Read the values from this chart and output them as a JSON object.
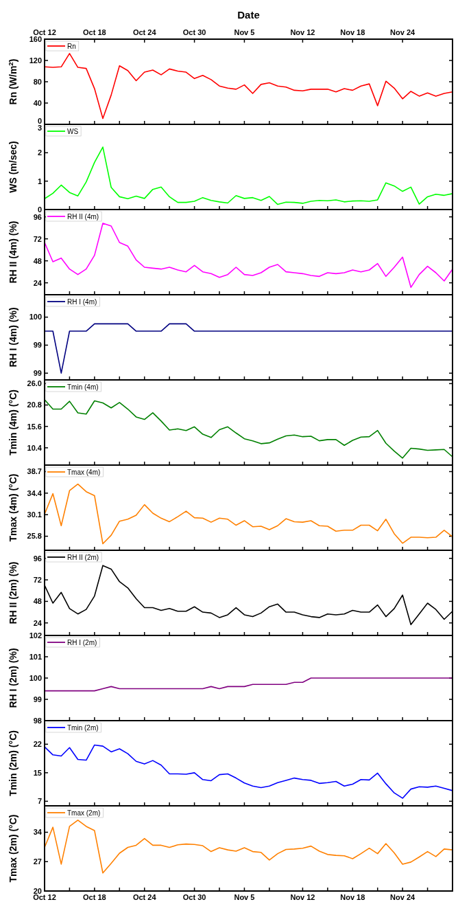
{
  "chart_data": [
    {
      "type": "line",
      "x2label": "Date",
      "x2lim": [
        "--10-12",
        "--11-30"
      ],
      "x2ticks": [
        {
          "value": "--10-12",
          "label": "Oct 12"
        },
        {
          "value": "--10-18",
          "label": "Oct 18"
        },
        {
          "value": "--10-24",
          "label": "Oct 24"
        },
        {
          "value": "--10-30",
          "label": "Oct 30"
        },
        {
          "value": "--11-05",
          "label": "Nov 5"
        },
        {
          "value": "--11-12",
          "label": "Nov 12"
        },
        {
          "value": "--11-18",
          "label": "Nov 18"
        },
        {
          "value": "--11-24",
          "label": "Nov 24"
        }
      ],
      "ylabel": "Rn (W/m$^{2}$)",
      "xlim": [
        "--10-12",
        "--11-30"
      ],
      "xticks": [
        {
          "value": "--10-12",
          "label": null
        },
        {
          "value": "--10-15",
          "label": null
        },
        {
          "value": "--10-18",
          "label": null
        },
        {
          "value": "--10-21",
          "label": null
        },
        {
          "value": "--10-24",
          "label": null
        },
        {
          "value": "--10-27",
          "label": null
        },
        {
          "value": "--10-30",
          "label": null
        },
        {
          "value": "--11-02",
          "label": null
        },
        {
          "value": "--11-05",
          "label": null
        },
        {
          "value": "--11-08",
          "label": null
        },
        {
          "value": "--11-12",
          "label": null
        },
        {
          "value": "--11-15",
          "label": null
        },
        {
          "value": "--11-18",
          "label": null
        },
        {
          "value": "--11-21",
          "label": null
        },
        {
          "value": "--11-24",
          "label": null
        },
        {
          "value": "--11-27",
          "label": null
        }
      ],
      "ylim": [
        0,
        160
      ],
      "yticks": [
        0,
        40,
        80,
        120,
        160
      ],
      "tick_labels": "y",
      "legend": "top left",
      "x": [
        "--10-12",
        "--10-13",
        "--10-14",
        "--10-15",
        "--10-16",
        "--10-17",
        "--10-18",
        "--10-19",
        "--10-20",
        "--10-21",
        "--10-22",
        "--10-23",
        "--10-24",
        "--10-25",
        "--10-26",
        "--10-27",
        "--10-28",
        "--10-29",
        "--10-30",
        "--10-31",
        "--11-01",
        "--11-02",
        "--11-03",
        "--11-04",
        "--11-05",
        "--11-06",
        "--11-07",
        "--11-08",
        "--11-09",
        "--11-10",
        "--11-11",
        "--11-12",
        "--11-13",
        "--11-14",
        "--11-15",
        "--11-16",
        "--11-17",
        "--11-18",
        "--11-19",
        "--11-20",
        "--11-21",
        "--11-22",
        "--11-23",
        "--11-24",
        "--11-25",
        "--11-26",
        "--11-27",
        "--11-28",
        "--11-29",
        "--11-30"
      ],
      "series": [
        {
          "name": "Rn",
          "color": "#ff0000",
          "values": [
            108,
            107,
            108,
            133,
            107,
            105,
            67,
            11,
            55,
            110,
            101,
            82,
            98,
            102,
            93,
            104,
            100,
            98,
            86,
            92,
            84,
            72,
            68,
            66,
            74,
            58,
            75,
            78,
            72,
            70,
            64,
            63,
            66,
            66,
            66,
            61,
            67,
            64,
            72,
            76,
            35,
            81,
            68,
            48,
            62,
            53,
            59,
            53,
            58,
            61
          ]
        }
      ]
    },
    {
      "type": "line",
      "ylabel": "WS (m/sec)",
      "xlim": [
        "--10-12",
        "--11-30"
      ],
      "xticks": [
        {
          "value": "--10-12",
          "label": null
        },
        {
          "value": "--10-15",
          "label": null
        },
        {
          "value": "--10-18",
          "label": null
        },
        {
          "value": "--10-21",
          "label": null
        },
        {
          "value": "--10-24",
          "label": null
        },
        {
          "value": "--10-27",
          "label": null
        },
        {
          "value": "--10-30",
          "label": null
        },
        {
          "value": "--11-02",
          "label": null
        },
        {
          "value": "--11-05",
          "label": null
        },
        {
          "value": "--11-08",
          "label": null
        },
        {
          "value": "--11-12",
          "label": null
        },
        {
          "value": "--11-15",
          "label": null
        },
        {
          "value": "--11-18",
          "label": null
        },
        {
          "value": "--11-21",
          "label": null
        },
        {
          "value": "--11-24",
          "label": null
        },
        {
          "value": "--11-27",
          "label": null
        }
      ],
      "ylim": [
        0,
        3
      ],
      "yticks": [
        0,
        1,
        2,
        3
      ],
      "tick_labels": "y",
      "legend": "top left",
      "x": [
        "--10-12",
        "--10-13",
        "--10-14",
        "--10-15",
        "--10-16",
        "--10-17",
        "--10-18",
        "--10-19",
        "--10-20",
        "--10-21",
        "--10-22",
        "--10-23",
        "--10-24",
        "--10-25",
        "--10-26",
        "--10-27",
        "--10-28",
        "--10-29",
        "--10-30",
        "--10-31",
        "--11-01",
        "--11-02",
        "--11-03",
        "--11-04",
        "--11-05",
        "--11-06",
        "--11-07",
        "--11-08",
        "--11-09",
        "--11-10",
        "--11-11",
        "--11-12",
        "--11-13",
        "--11-14",
        "--11-15",
        "--11-16",
        "--11-17",
        "--11-18",
        "--11-19",
        "--11-20",
        "--11-21",
        "--11-22",
        "--11-23",
        "--11-24",
        "--11-25",
        "--11-26",
        "--11-27",
        "--11-28",
        "--11-29",
        "--11-30"
      ],
      "series": [
        {
          "name": "WS",
          "color": "#00ff00",
          "values": [
            0.38,
            0.57,
            0.86,
            0.6,
            0.48,
            0.97,
            1.66,
            2.2,
            0.78,
            0.45,
            0.38,
            0.47,
            0.39,
            0.71,
            0.79,
            0.45,
            0.25,
            0.25,
            0.29,
            0.42,
            0.32,
            0.27,
            0.23,
            0.49,
            0.39,
            0.42,
            0.32,
            0.46,
            0.18,
            0.26,
            0.25,
            0.22,
            0.29,
            0.32,
            0.31,
            0.34,
            0.27,
            0.3,
            0.31,
            0.29,
            0.34,
            0.94,
            0.83,
            0.64,
            0.79,
            0.19,
            0.45,
            0.54,
            0.5,
            0.56
          ]
        }
      ]
    },
    {
      "type": "line",
      "ylabel": "RH II (4m) (%)",
      "xlim": [
        "--10-12",
        "--11-30"
      ],
      "xticks": [
        {
          "value": "--10-12",
          "label": null
        },
        {
          "value": "--10-15",
          "label": null
        },
        {
          "value": "--10-18",
          "label": null
        },
        {
          "value": "--10-21",
          "label": null
        },
        {
          "value": "--10-24",
          "label": null
        },
        {
          "value": "--10-27",
          "label": null
        },
        {
          "value": "--10-30",
          "label": null
        },
        {
          "value": "--11-02",
          "label": null
        },
        {
          "value": "--11-05",
          "label": null
        },
        {
          "value": "--11-08",
          "label": null
        },
        {
          "value": "--11-12",
          "label": null
        },
        {
          "value": "--11-15",
          "label": null
        },
        {
          "value": "--11-18",
          "label": null
        },
        {
          "value": "--11-21",
          "label": null
        },
        {
          "value": "--11-24",
          "label": null
        },
        {
          "value": "--11-27",
          "label": null
        }
      ],
      "ylim": [
        11,
        104
      ],
      "yticks": [
        24,
        48,
        72,
        96
      ],
      "tick_labels": "y",
      "legend": "top left",
      "x": [
        "--10-12",
        "--10-13",
        "--10-14",
        "--10-15",
        "--10-16",
        "--10-17",
        "--10-18",
        "--10-19",
        "--10-20",
        "--10-21",
        "--10-22",
        "--10-23",
        "--10-24",
        "--10-25",
        "--10-26",
        "--10-27",
        "--10-28",
        "--10-29",
        "--10-30",
        "--10-31",
        "--11-01",
        "--11-02",
        "--11-03",
        "--11-04",
        "--11-05",
        "--11-06",
        "--11-07",
        "--11-08",
        "--11-09",
        "--11-10",
        "--11-11",
        "--11-12",
        "--11-13",
        "--11-14",
        "--11-15",
        "--11-16",
        "--11-17",
        "--11-18",
        "--11-19",
        "--11-20",
        "--11-21",
        "--11-22",
        "--11-23",
        "--11-24",
        "--11-25",
        "--11-26",
        "--11-27",
        "--11-28",
        "--11-29",
        "--11-30"
      ],
      "series": [
        {
          "name": "RH II (4m)",
          "color": "#ff00ff",
          "values": [
            68,
            47,
            51,
            39,
            33,
            39,
            54,
            89,
            86,
            68,
            64,
            49,
            41,
            40,
            39,
            41,
            38,
            36,
            43,
            36,
            34,
            30,
            33,
            41,
            33,
            32,
            35,
            41,
            44,
            36,
            35,
            34,
            32,
            31,
            35,
            34,
            35,
            38,
            36,
            38,
            45,
            31,
            41,
            52,
            19,
            33,
            42,
            35,
            26,
            39
          ]
        }
      ]
    },
    {
      "type": "line",
      "ylabel": "RH I (4m) (%)",
      "xlim": [
        "--10-12",
        "--11-30"
      ],
      "xticks": [
        {
          "value": "--10-12",
          "label": null
        },
        {
          "value": "--10-15",
          "label": null
        },
        {
          "value": "--10-18",
          "label": null
        },
        {
          "value": "--10-21",
          "label": null
        },
        {
          "value": "--10-24",
          "label": null
        },
        {
          "value": "--10-27",
          "label": null
        },
        {
          "value": "--10-30",
          "label": null
        },
        {
          "value": "--11-02",
          "label": null
        },
        {
          "value": "--11-05",
          "label": null
        },
        {
          "value": "--11-08",
          "label": null
        },
        {
          "value": "--11-12",
          "label": null
        },
        {
          "value": "--11-15",
          "label": null
        },
        {
          "value": "--11-18",
          "label": null
        },
        {
          "value": "--11-21",
          "label": null
        },
        {
          "value": "--11-24",
          "label": null
        },
        {
          "value": "--11-27",
          "label": null
        }
      ],
      "ylim": [
        98.88,
        100.4
      ],
      "yticks": [
        {
          "value": 99,
          "label": "99"
        },
        {
          "value": 99.5,
          "label": "99"
        },
        {
          "value": 100,
          "label": "100"
        }
      ],
      "tick_labels": "y",
      "legend": "top left",
      "x": [
        "--10-12",
        "--10-13",
        "--10-14",
        "--10-15",
        "--10-16",
        "--10-17",
        "--10-18",
        "--10-19",
        "--10-20",
        "--10-21",
        "--10-22",
        "--10-23",
        "--10-24",
        "--10-25",
        "--10-26",
        "--10-27",
        "--10-28",
        "--10-29",
        "--10-30",
        "--10-31",
        "--11-01",
        "--11-02",
        "--11-03",
        "--11-04",
        "--11-05",
        "--11-06",
        "--11-07",
        "--11-08",
        "--11-09",
        "--11-10",
        "--11-11",
        "--11-12",
        "--11-13",
        "--11-14",
        "--11-15",
        "--11-16",
        "--11-17",
        "--11-18",
        "--11-19",
        "--11-20",
        "--11-21",
        "--11-22",
        "--11-23",
        "--11-24",
        "--11-25",
        "--11-26",
        "--11-27",
        "--11-28",
        "--11-29",
        "--11-30"
      ],
      "series": [
        {
          "name": "RH I (4m)",
          "color": "#000080",
          "values": [
            99.75,
            99.75,
            99.0,
            99.75,
            99.75,
            99.75,
            99.88,
            99.88,
            99.88,
            99.88,
            99.88,
            99.75,
            99.75,
            99.75,
            99.75,
            99.88,
            99.88,
            99.88,
            99.75,
            99.75,
            99.75,
            99.75,
            99.75,
            99.75,
            99.75,
            99.75,
            99.75,
            99.75,
            99.75,
            99.75,
            99.75,
            99.75,
            99.75,
            99.75,
            99.75,
            99.75,
            99.75,
            99.75,
            99.75,
            99.75,
            99.75,
            99.75,
            99.75,
            99.75,
            99.75,
            99.75,
            99.75,
            99.75,
            99.75,
            99.75
          ]
        }
      ]
    },
    {
      "type": "line",
      "ylabel": "Tmin (4m) (°C)",
      "xlim": [
        "--10-12",
        "--11-30"
      ],
      "xticks": [
        {
          "value": "--10-12",
          "label": null
        },
        {
          "value": "--10-15",
          "label": null
        },
        {
          "value": "--10-18",
          "label": null
        },
        {
          "value": "--10-21",
          "label": null
        },
        {
          "value": "--10-24",
          "label": null
        },
        {
          "value": "--10-27",
          "label": null
        },
        {
          "value": "--10-30",
          "label": null
        },
        {
          "value": "--11-02",
          "label": null
        },
        {
          "value": "--11-05",
          "label": null
        },
        {
          "value": "--11-08",
          "label": null
        },
        {
          "value": "--11-12",
          "label": null
        },
        {
          "value": "--11-15",
          "label": null
        },
        {
          "value": "--11-18",
          "label": null
        },
        {
          "value": "--11-21",
          "label": null
        },
        {
          "value": "--11-24",
          "label": null
        },
        {
          "value": "--11-27",
          "label": null
        }
      ],
      "ylim": [
        6.2,
        26.9
      ],
      "yticks": [
        10.4,
        15.6,
        20.8,
        {
          "value": 26,
          "label": "26.0"
        }
      ],
      "tick_labels": "y",
      "legend": "top left",
      "x": [
        "--10-12",
        "--10-13",
        "--10-14",
        "--10-15",
        "--10-16",
        "--10-17",
        "--10-18",
        "--10-19",
        "--10-20",
        "--10-21",
        "--10-22",
        "--10-23",
        "--10-24",
        "--10-25",
        "--10-26",
        "--10-27",
        "--10-28",
        "--10-29",
        "--10-30",
        "--10-31",
        "--11-01",
        "--11-02",
        "--11-03",
        "--11-04",
        "--11-05",
        "--11-06",
        "--11-07",
        "--11-08",
        "--11-09",
        "--11-10",
        "--11-11",
        "--11-12",
        "--11-13",
        "--11-14",
        "--11-15",
        "--11-16",
        "--11-17",
        "--11-18",
        "--11-19",
        "--11-20",
        "--11-21",
        "--11-22",
        "--11-23",
        "--11-24",
        "--11-25",
        "--11-26",
        "--11-27",
        "--11-28",
        "--11-29",
        "--11-30"
      ],
      "series": [
        {
          "name": "Tmin (4m)",
          "color": "#008000",
          "values": [
            22.1,
            19.8,
            19.8,
            21.7,
            18.9,
            18.6,
            21.8,
            21.3,
            20.1,
            21.4,
            19.8,
            17.9,
            17.3,
            18.9,
            16.9,
            14.7,
            15,
            14.6,
            15.5,
            13.7,
            12.9,
            14.8,
            15.5,
            14,
            12.6,
            12.1,
            11.4,
            11.6,
            12.5,
            13.3,
            13.5,
            13.1,
            13.2,
            12.1,
            12.4,
            12.4,
            11,
            12.2,
            13,
            13.1,
            14.6,
            11.5,
            9.6,
            7.9,
            10.3,
            10.1,
            9.8,
            9.9,
            10,
            8.2
          ]
        }
      ]
    },
    {
      "type": "line",
      "ylabel": "Tmax (4m) (°C)",
      "xlim": [
        "--10-12",
        "--11-30"
      ],
      "xticks": [
        {
          "value": "--10-12",
          "label": null
        },
        {
          "value": "--10-15",
          "label": null
        },
        {
          "value": "--10-18",
          "label": null
        },
        {
          "value": "--10-21",
          "label": null
        },
        {
          "value": "--10-24",
          "label": null
        },
        {
          "value": "--10-27",
          "label": null
        },
        {
          "value": "--10-30",
          "label": null
        },
        {
          "value": "--11-02",
          "label": null
        },
        {
          "value": "--11-05",
          "label": null
        },
        {
          "value": "--11-08",
          "label": null
        },
        {
          "value": "--11-12",
          "label": null
        },
        {
          "value": "--11-15",
          "label": null
        },
        {
          "value": "--11-18",
          "label": null
        },
        {
          "value": "--11-21",
          "label": null
        },
        {
          "value": "--11-24",
          "label": null
        },
        {
          "value": "--11-27",
          "label": null
        }
      ],
      "ylim": [
        23,
        40
      ],
      "yticks": [
        25.8,
        30.1,
        34.4,
        38.7
      ],
      "tick_labels": "y",
      "legend": "top left",
      "x": [
        "--10-12",
        "--10-13",
        "--10-14",
        "--10-15",
        "--10-16",
        "--10-17",
        "--10-18",
        "--10-19",
        "--10-20",
        "--10-21",
        "--10-22",
        "--10-23",
        "--10-24",
        "--10-25",
        "--10-26",
        "--10-27",
        "--10-28",
        "--10-29",
        "--10-30",
        "--10-31",
        "--11-01",
        "--11-02",
        "--11-03",
        "--11-04",
        "--11-05",
        "--11-06",
        "--11-07",
        "--11-08",
        "--11-09",
        "--11-10",
        "--11-11",
        "--11-12",
        "--11-13",
        "--11-14",
        "--11-15",
        "--11-16",
        "--11-17",
        "--11-18",
        "--11-19",
        "--11-20",
        "--11-21",
        "--11-22",
        "--11-23",
        "--11-24",
        "--11-25",
        "--11-26",
        "--11-27",
        "--11-28",
        "--11-29",
        "--11-30"
      ],
      "series": [
        {
          "name": "Tmax (4m)",
          "color": "#ff8000",
          "values": [
            30.2,
            34.3,
            27.9,
            34.9,
            36.2,
            34.7,
            33.9,
            24.3,
            26,
            28.8,
            29.2,
            30,
            32.1,
            30.4,
            29.4,
            28.7,
            29.7,
            30.8,
            29.5,
            29.4,
            28.6,
            29.4,
            29.2,
            28,
            28.9,
            27.7,
            27.8,
            27.1,
            27.9,
            29.3,
            28.7,
            28.6,
            28.9,
            27.9,
            27.8,
            26.8,
            27,
            27,
            28,
            28,
            26.9,
            29.2,
            26.3,
            24.4,
            25.6,
            25.6,
            25.5,
            25.6,
            27,
            25.7
          ]
        }
      ]
    },
    {
      "type": "line",
      "ylabel": "RH II (2m) (%)",
      "xlim": [
        "--10-12",
        "--11-30"
      ],
      "xticks": [
        {
          "value": "--10-12",
          "label": null
        },
        {
          "value": "--10-15",
          "label": null
        },
        {
          "value": "--10-18",
          "label": null
        },
        {
          "value": "--10-21",
          "label": null
        },
        {
          "value": "--10-24",
          "label": null
        },
        {
          "value": "--10-27",
          "label": null
        },
        {
          "value": "--10-30",
          "label": null
        },
        {
          "value": "--11-02",
          "label": null
        },
        {
          "value": "--11-05",
          "label": null
        },
        {
          "value": "--11-08",
          "label": null
        },
        {
          "value": "--11-12",
          "label": null
        },
        {
          "value": "--11-15",
          "label": null
        },
        {
          "value": "--11-18",
          "label": null
        },
        {
          "value": "--11-21",
          "label": null
        },
        {
          "value": "--11-24",
          "label": null
        },
        {
          "value": "--11-27",
          "label": null
        }
      ],
      "ylim": [
        10,
        105
      ],
      "yticks": [
        24,
        48,
        72,
        96
      ],
      "tick_labels": "y",
      "legend": "top left",
      "x": [
        "--10-12",
        "--10-13",
        "--10-14",
        "--10-15",
        "--10-16",
        "--10-17",
        "--10-18",
        "--10-19",
        "--10-20",
        "--10-21",
        "--10-22",
        "--10-23",
        "--10-24",
        "--10-25",
        "--10-26",
        "--10-27",
        "--10-28",
        "--10-29",
        "--10-30",
        "--10-31",
        "--11-01",
        "--11-02",
        "--11-03",
        "--11-04",
        "--11-05",
        "--11-06",
        "--11-07",
        "--11-08",
        "--11-09",
        "--11-10",
        "--11-11",
        "--11-12",
        "--11-13",
        "--11-14",
        "--11-15",
        "--11-16",
        "--11-17",
        "--11-18",
        "--11-19",
        "--11-20",
        "--11-21",
        "--11-22",
        "--11-23",
        "--11-24",
        "--11-25",
        "--11-26",
        "--11-27",
        "--11-28",
        "--11-29",
        "--11-30"
      ],
      "series": [
        {
          "name": "RH II (2m)",
          "color": "#000000",
          "values": [
            66,
            46,
            58,
            40,
            34,
            39,
            54,
            88,
            84,
            70,
            63,
            51,
            41,
            41,
            38,
            40,
            37,
            37,
            42,
            36,
            35,
            30,
            33,
            41,
            33,
            31,
            35,
            42,
            45,
            36,
            36,
            33,
            31,
            30,
            34,
            33,
            34,
            38,
            36,
            36,
            44,
            31,
            40,
            55,
            22,
            34,
            46,
            39,
            28,
            37
          ]
        }
      ]
    },
    {
      "type": "line",
      "ylabel": "RH I (2m) (%)",
      "xlim": [
        "--10-12",
        "--11-30"
      ],
      "xticks": [
        {
          "value": "--10-12",
          "label": null
        },
        {
          "value": "--10-15",
          "label": null
        },
        {
          "value": "--10-18",
          "label": null
        },
        {
          "value": "--10-21",
          "label": null
        },
        {
          "value": "--10-24",
          "label": null
        },
        {
          "value": "--10-27",
          "label": null
        },
        {
          "value": "--10-30",
          "label": null
        },
        {
          "value": "--11-02",
          "label": null
        },
        {
          "value": "--11-05",
          "label": null
        },
        {
          "value": "--11-08",
          "label": null
        },
        {
          "value": "--11-12",
          "label": null
        },
        {
          "value": "--11-15",
          "label": null
        },
        {
          "value": "--11-18",
          "label": null
        },
        {
          "value": "--11-21",
          "label": null
        },
        {
          "value": "--11-24",
          "label": null
        },
        {
          "value": "--11-27",
          "label": null
        }
      ],
      "ylim": [
        98,
        102
      ],
      "yticks": [
        98,
        99,
        100,
        101,
        102
      ],
      "tick_labels": "y",
      "legend": "top left",
      "x": [
        "--10-12",
        "--10-13",
        "--10-14",
        "--10-15",
        "--10-16",
        "--10-17",
        "--10-18",
        "--10-19",
        "--10-20",
        "--10-21",
        "--10-22",
        "--10-23",
        "--10-24",
        "--10-25",
        "--10-26",
        "--10-27",
        "--10-28",
        "--10-29",
        "--10-30",
        "--10-31",
        "--11-01",
        "--11-02",
        "--11-03",
        "--11-04",
        "--11-05",
        "--11-06",
        "--11-07",
        "--11-08",
        "--11-09",
        "--11-10",
        "--11-11",
        "--11-12",
        "--11-13",
        "--11-14",
        "--11-15",
        "--11-16",
        "--11-17",
        "--11-18",
        "--11-19",
        "--11-20",
        "--11-21",
        "--11-22",
        "--11-23",
        "--11-24",
        "--11-25",
        "--11-26",
        "--11-27",
        "--11-28",
        "--11-29",
        "--11-30"
      ],
      "series": [
        {
          "name": "RH I (2m)",
          "color": "#800080",
          "values": [
            99.4,
            99.4,
            99.4,
            99.4,
            99.4,
            99.4,
            99.4,
            99.5,
            99.6,
            99.5,
            99.5,
            99.5,
            99.5,
            99.5,
            99.5,
            99.5,
            99.5,
            99.5,
            99.5,
            99.5,
            99.6,
            99.5,
            99.6,
            99.6,
            99.6,
            99.7,
            99.7,
            99.7,
            99.7,
            99.7,
            99.8,
            99.8,
            100,
            100,
            100,
            100,
            100,
            100,
            100,
            100,
            100,
            100,
            100,
            100,
            100,
            100,
            100,
            100,
            100,
            100
          ]
        }
      ]
    },
    {
      "type": "line",
      "ylabel": "Tmin (2m) (°C)",
      "xlim": [
        "--10-12",
        "--11-30"
      ],
      "xticks": [
        {
          "value": "--10-12",
          "label": null
        },
        {
          "value": "--10-15",
          "label": null
        },
        {
          "value": "--10-18",
          "label": null
        },
        {
          "value": "--10-21",
          "label": null
        },
        {
          "value": "--10-24",
          "label": null
        },
        {
          "value": "--10-27",
          "label": null
        },
        {
          "value": "--10-30",
          "label": null
        },
        {
          "value": "--11-02",
          "label": null
        },
        {
          "value": "--11-05",
          "label": null
        },
        {
          "value": "--11-08",
          "label": null
        },
        {
          "value": "--11-12",
          "label": null
        },
        {
          "value": "--11-15",
          "label": null
        },
        {
          "value": "--11-18",
          "label": null
        },
        {
          "value": "--11-21",
          "label": null
        },
        {
          "value": "--11-24",
          "label": null
        },
        {
          "value": "--11-27",
          "label": null
        }
      ],
      "ylim": [
        5.8,
        28.2
      ],
      "yticks": [
        7,
        {
          "value": 14.5,
          "label": "15"
        },
        22
      ],
      "tick_labels": "y",
      "legend": "top left",
      "x": [
        "--10-12",
        "--10-13",
        "--10-14",
        "--10-15",
        "--10-16",
        "--10-17",
        "--10-18",
        "--10-19",
        "--10-20",
        "--10-21",
        "--10-22",
        "--10-23",
        "--10-24",
        "--10-25",
        "--10-26",
        "--10-27",
        "--10-28",
        "--10-29",
        "--10-30",
        "--10-31",
        "--11-01",
        "--11-02",
        "--11-03",
        "--11-04",
        "--11-05",
        "--11-06",
        "--11-07",
        "--11-08",
        "--11-09",
        "--11-10",
        "--11-11",
        "--11-12",
        "--11-13",
        "--11-14",
        "--11-15",
        "--11-16",
        "--11-17",
        "--11-18",
        "--11-19",
        "--11-20",
        "--11-21",
        "--11-22",
        "--11-23",
        "--11-24",
        "--11-25",
        "--11-26",
        "--11-27",
        "--11-28",
        "--11-29",
        "--11-30"
      ],
      "series": [
        {
          "name": "Tmin (2m)",
          "color": "#0000ff",
          "values": [
            21.3,
            19.2,
            18.9,
            21.1,
            18,
            17.8,
            21.8,
            21.5,
            20,
            20.8,
            19.5,
            17.5,
            16.8,
            17.7,
            16.5,
            14.2,
            14.2,
            14.1,
            14.5,
            12.7,
            12.4,
            14,
            14.2,
            13.1,
            11.8,
            11,
            10.6,
            11,
            11.9,
            12.5,
            13.1,
            12.7,
            12.5,
            11.7,
            11.9,
            12.2,
            11,
            11.5,
            12.7,
            12.6,
            14.4,
            11.6,
            9.2,
            7.8,
            10.2,
            10.8,
            10.7,
            11,
            10.4,
            9.8
          ]
        }
      ]
    },
    {
      "type": "line",
      "ylabel": "Tmax (2m) (°C)",
      "xlim": [
        "--10-12",
        "--11-30"
      ],
      "xticks": [
        {
          "value": "--10-12",
          "label": "Oct 12"
        },
        {
          "value": "--10-15",
          "label": null
        },
        {
          "value": "--10-18",
          "label": "Oct 18"
        },
        {
          "value": "--10-21",
          "label": null
        },
        {
          "value": "--10-24",
          "label": "Oct 24"
        },
        {
          "value": "--10-27",
          "label": null
        },
        {
          "value": "--10-30",
          "label": "Oct 30"
        },
        {
          "value": "--11-02",
          "label": null
        },
        {
          "value": "--11-05",
          "label": "Nov 5"
        },
        {
          "value": "--11-08",
          "label": null
        },
        {
          "value": "--11-12",
          "label": "Nov 12"
        },
        {
          "value": "--11-15",
          "label": null
        },
        {
          "value": "--11-18",
          "label": "Nov 18"
        },
        {
          "value": "--11-21",
          "label": null
        },
        {
          "value": "--11-24",
          "label": "Nov 24"
        },
        {
          "value": "--11-27",
          "label": null
        }
      ],
      "ylim": [
        20,
        40.3
      ],
      "yticks": [
        20,
        27,
        34
      ],
      "legend": "top left",
      "x": [
        "--10-12",
        "--10-13",
        "--10-14",
        "--10-15",
        "--10-16",
        "--10-17",
        "--10-18",
        "--10-19",
        "--10-20",
        "--10-21",
        "--10-22",
        "--10-23",
        "--10-24",
        "--10-25",
        "--10-26",
        "--10-27",
        "--10-28",
        "--10-29",
        "--10-30",
        "--10-31",
        "--11-01",
        "--11-02",
        "--11-03",
        "--11-04",
        "--11-05",
        "--11-06",
        "--11-07",
        "--11-08",
        "--11-09",
        "--11-10",
        "--11-11",
        "--11-12",
        "--11-13",
        "--11-14",
        "--11-15",
        "--11-16",
        "--11-17",
        "--11-18",
        "--11-19",
        "--11-20",
        "--11-21",
        "--11-22",
        "--11-23",
        "--11-24",
        "--11-25",
        "--11-26",
        "--11-27",
        "--11-28",
        "--11-29",
        "--11-30"
      ],
      "series": [
        {
          "name": "Tmax (2m)",
          "color": "#ff8000",
          "values": [
            30.4,
            35.2,
            26.4,
            35.4,
            36.9,
            35.4,
            34.4,
            24.3,
            26.6,
            29,
            30.4,
            30.9,
            32.5,
            30.9,
            30.9,
            30.4,
            31,
            31.2,
            31.1,
            30.8,
            29.4,
            30.3,
            29.8,
            29.5,
            30.3,
            29.4,
            29.2,
            27.4,
            28.9,
            29.9,
            30,
            30.2,
            30.7,
            29.5,
            28.7,
            28.5,
            28.4,
            27.7,
            28.9,
            30.2,
            28.9,
            31.3,
            29.1,
            26.4,
            26.9,
            28.1,
            29.4,
            28.2,
            30,
            29.8
          ]
        }
      ]
    }
  ]
}
